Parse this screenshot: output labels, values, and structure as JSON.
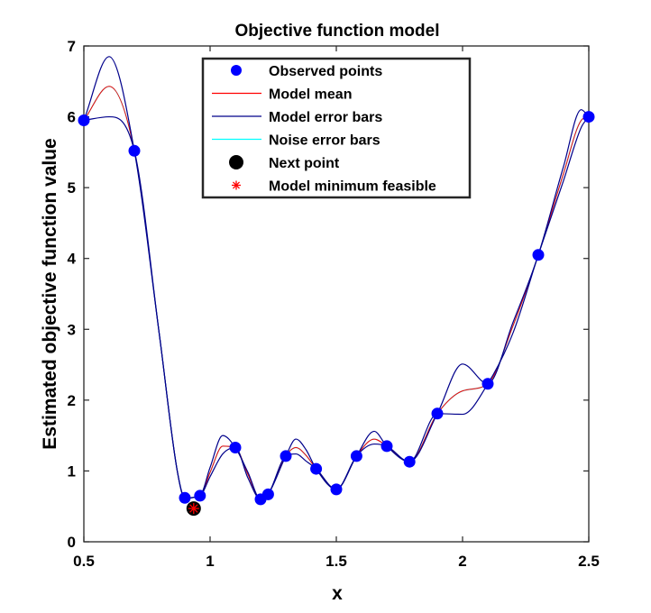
{
  "chart_data": {
    "type": "line",
    "title": "Objective function model",
    "xlabel": "x",
    "ylabel": "Estimated objective function value",
    "xlim": [
      0.5,
      2.5
    ],
    "ylim": [
      0,
      7
    ],
    "x_ticks": [
      0.5,
      1,
      1.5,
      2,
      2.5
    ],
    "x_tick_labels": [
      "0.5",
      "1",
      "1.5",
      "2",
      "2.5"
    ],
    "y_ticks": [
      0,
      1,
      2,
      3,
      4,
      5,
      6,
      7
    ],
    "y_tick_labels": [
      "0",
      "1",
      "2",
      "3",
      "4",
      "5",
      "6",
      "7"
    ],
    "grid": false,
    "legend_position": "top-center",
    "legend": [
      {
        "key": "observed",
        "label": "Observed points",
        "marker": "circle",
        "color": "#0000ff"
      },
      {
        "key": "mean",
        "label": "Model mean",
        "marker": "line",
        "color": "#ff0000"
      },
      {
        "key": "model_err",
        "label": "Model error bars",
        "marker": "line",
        "color": "#00008b"
      },
      {
        "key": "noise_err",
        "label": "Noise error bars",
        "marker": "line",
        "color": "#00ffff"
      },
      {
        "key": "next",
        "label": "Next point",
        "marker": "circle",
        "color": "#000000"
      },
      {
        "key": "min",
        "label": "Model minimum feasible",
        "marker": "asterisk",
        "color": "#ff0000"
      }
    ],
    "series": [
      {
        "name": "Observed points",
        "type": "scatter",
        "color": "#0000ff",
        "points": [
          [
            0.5,
            5.95
          ],
          [
            0.7,
            5.52
          ],
          [
            0.9,
            0.62
          ],
          [
            0.96,
            0.65
          ],
          [
            1.1,
            1.33
          ],
          [
            1.2,
            0.6
          ],
          [
            1.23,
            0.67
          ],
          [
            1.3,
            1.21
          ],
          [
            1.42,
            1.03
          ],
          [
            1.5,
            0.74
          ],
          [
            1.58,
            1.21
          ],
          [
            1.7,
            1.35
          ],
          [
            1.79,
            1.13
          ],
          [
            1.9,
            1.81
          ],
          [
            2.1,
            2.23
          ],
          [
            2.3,
            4.05
          ],
          [
            2.5,
            6.0
          ]
        ]
      },
      {
        "name": "Model mean",
        "type": "line",
        "color": "#ff0000",
        "points": [
          [
            0.5,
            5.95
          ],
          [
            0.6,
            6.43
          ],
          [
            0.7,
            5.52
          ],
          [
            0.8,
            2.9
          ],
          [
            0.87,
            1.0
          ],
          [
            0.9,
            0.62
          ],
          [
            0.96,
            0.65
          ],
          [
            1.0,
            0.98
          ],
          [
            1.05,
            1.35
          ],
          [
            1.1,
            1.33
          ],
          [
            1.15,
            0.95
          ],
          [
            1.2,
            0.6
          ],
          [
            1.23,
            0.67
          ],
          [
            1.3,
            1.21
          ],
          [
            1.34,
            1.33
          ],
          [
            1.38,
            1.22
          ],
          [
            1.42,
            1.03
          ],
          [
            1.5,
            0.74
          ],
          [
            1.58,
            1.21
          ],
          [
            1.65,
            1.45
          ],
          [
            1.7,
            1.35
          ],
          [
            1.79,
            1.13
          ],
          [
            1.9,
            1.81
          ],
          [
            2.0,
            2.13
          ],
          [
            2.1,
            2.23
          ],
          [
            2.2,
            3.05
          ],
          [
            2.3,
            4.05
          ],
          [
            2.4,
            5.2
          ],
          [
            2.47,
            5.95
          ],
          [
            2.5,
            6.0
          ]
        ]
      },
      {
        "name": "Model error bars (upper)",
        "type": "line",
        "color": "#00008b",
        "points": [
          [
            0.5,
            5.95
          ],
          [
            0.6,
            6.85
          ],
          [
            0.7,
            5.52
          ],
          [
            0.8,
            2.9
          ],
          [
            0.87,
            1.0
          ],
          [
            0.9,
            0.62
          ],
          [
            0.96,
            0.65
          ],
          [
            1.0,
            1.05
          ],
          [
            1.05,
            1.5
          ],
          [
            1.1,
            1.33
          ],
          [
            1.15,
            0.98
          ],
          [
            1.2,
            0.6
          ],
          [
            1.23,
            0.67
          ],
          [
            1.3,
            1.21
          ],
          [
            1.34,
            1.45
          ],
          [
            1.38,
            1.3
          ],
          [
            1.42,
            1.03
          ],
          [
            1.5,
            0.74
          ],
          [
            1.58,
            1.21
          ],
          [
            1.65,
            1.56
          ],
          [
            1.7,
            1.35
          ],
          [
            1.79,
            1.13
          ],
          [
            1.9,
            1.81
          ],
          [
            2.0,
            2.51
          ],
          [
            2.1,
            2.23
          ],
          [
            2.2,
            3.1
          ],
          [
            2.3,
            4.05
          ],
          [
            2.4,
            5.3
          ],
          [
            2.47,
            6.1
          ],
          [
            2.5,
            6.0
          ]
        ]
      },
      {
        "name": "Model error bars (lower)",
        "type": "line",
        "color": "#00008b",
        "points": [
          [
            0.5,
            5.95
          ],
          [
            0.6,
            6.0
          ],
          [
            0.7,
            5.52
          ],
          [
            0.8,
            2.9
          ],
          [
            0.87,
            1.0
          ],
          [
            0.9,
            0.62
          ],
          [
            0.96,
            0.65
          ],
          [
            1.0,
            0.92
          ],
          [
            1.05,
            1.24
          ],
          [
            1.1,
            1.33
          ],
          [
            1.15,
            0.9
          ],
          [
            1.2,
            0.6
          ],
          [
            1.23,
            0.67
          ],
          [
            1.3,
            1.21
          ],
          [
            1.34,
            1.24
          ],
          [
            1.38,
            1.14
          ],
          [
            1.42,
            1.03
          ],
          [
            1.5,
            0.74
          ],
          [
            1.58,
            1.21
          ],
          [
            1.65,
            1.38
          ],
          [
            1.7,
            1.35
          ],
          [
            1.79,
            1.13
          ],
          [
            1.9,
            1.81
          ],
          [
            2.0,
            1.8
          ],
          [
            2.1,
            2.23
          ],
          [
            2.2,
            2.95
          ],
          [
            2.3,
            4.05
          ],
          [
            2.4,
            5.1
          ],
          [
            2.47,
            5.85
          ],
          [
            2.5,
            6.0
          ]
        ]
      },
      {
        "name": "Noise error bars",
        "type": "line",
        "color": "#00ffff",
        "points": [
          [
            0.5,
            5.95
          ],
          [
            0.6,
            6.43
          ],
          [
            0.7,
            5.52
          ],
          [
            0.8,
            2.9
          ],
          [
            0.87,
            1.0
          ],
          [
            0.9,
            0.62
          ],
          [
            0.96,
            0.65
          ],
          [
            1.0,
            0.98
          ],
          [
            1.05,
            1.35
          ],
          [
            1.1,
            1.33
          ],
          [
            1.15,
            0.95
          ],
          [
            1.2,
            0.6
          ],
          [
            1.23,
            0.67
          ],
          [
            1.3,
            1.21
          ],
          [
            1.34,
            1.33
          ],
          [
            1.38,
            1.22
          ],
          [
            1.42,
            1.03
          ],
          [
            1.5,
            0.74
          ],
          [
            1.58,
            1.21
          ],
          [
            1.65,
            1.45
          ],
          [
            1.7,
            1.35
          ],
          [
            1.79,
            1.13
          ],
          [
            1.9,
            1.81
          ],
          [
            2.0,
            2.13
          ],
          [
            2.1,
            2.23
          ],
          [
            2.2,
            3.05
          ],
          [
            2.3,
            4.05
          ],
          [
            2.4,
            5.2
          ],
          [
            2.47,
            5.95
          ],
          [
            2.5,
            6.0
          ]
        ]
      },
      {
        "name": "Next point",
        "type": "scatter",
        "color": "#000000",
        "points": [
          [
            0.935,
            0.47
          ]
        ]
      },
      {
        "name": "Model minimum feasible",
        "type": "scatter",
        "color": "#ff0000",
        "points": [
          [
            0.935,
            0.47
          ]
        ]
      }
    ]
  }
}
